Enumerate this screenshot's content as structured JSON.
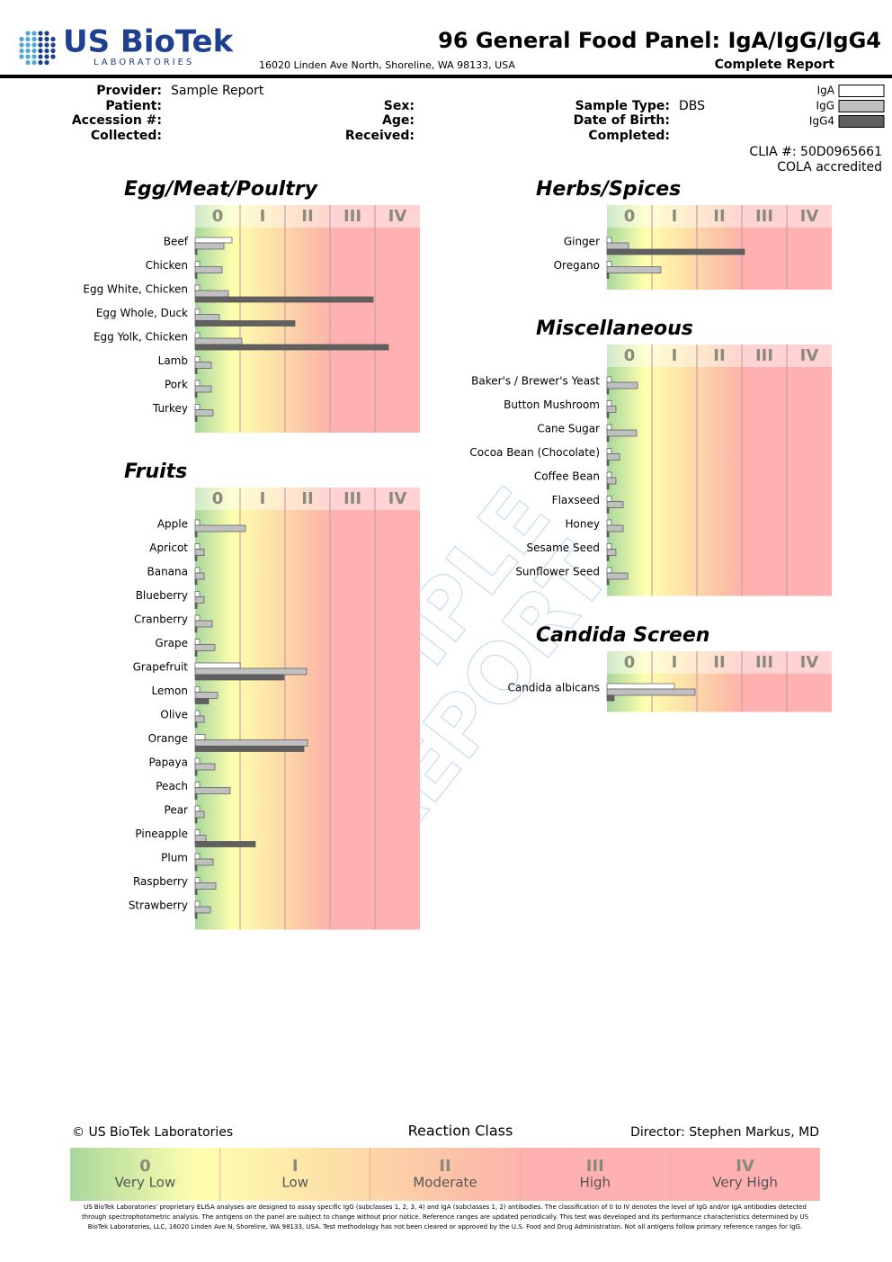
{
  "header": {
    "logo": "US BioTek",
    "logo_sub": "LABORATORIES",
    "address": "16020 Linden Ave North, Shoreline, WA 98133, USA",
    "title": "96 General Food Panel: IgA/IgG/IgG4",
    "subtitle": "Complete Report"
  },
  "fields": [
    [
      {
        "label": "Provider:",
        "value": "Sample Report"
      },
      {
        "label": "Patient:"
      },
      {
        "label": "Accession #:"
      },
      {
        "label": "Collected:"
      }
    ],
    [
      {
        "label": "Sex:"
      },
      {
        "label": "Age:"
      },
      {
        "label": "Received:"
      }
    ],
    [
      {
        "label": "Sample Type:",
        "value": "DBS"
      },
      {
        "label": "Date of Birth:"
      },
      {
        "label": "Completed:"
      }
    ]
  ],
  "legend": [
    {
      "name": "IgA",
      "color": "#ffffff"
    },
    {
      "name": "IgG",
      "color": "#c0c0c0"
    },
    {
      "name": "IgG4",
      "color": "#606060"
    }
  ],
  "clia": [
    "CLIA #: 50D0965661",
    "COLA accredited"
  ],
  "watermark": [
    "SAMPLE",
    "REPORT"
  ],
  "chart_data": [
    {
      "type": "bar",
      "title": "Egg/Meat/Poultry",
      "orientation": "horizontal",
      "categories": [
        "Beef",
        "Chicken",
        "Egg White, Chicken",
        "Egg Whole, Duck",
        "Egg Yolk, Chicken",
        "Lamb",
        "Pork",
        "Turkey"
      ],
      "series": [
        {
          "values": [
            0.82,
            0.1,
            0.1,
            0.1,
            0.1,
            0.1,
            0.1,
            0.1
          ]
        },
        {
          "values": [
            0.64,
            0.6,
            0.74,
            0.54,
            1.04,
            0.36,
            0.36,
            0.4
          ]
        },
        {
          "values": [
            0.04,
            0.04,
            3.96,
            2.22,
            4.3,
            0.04,
            0.04,
            0.04
          ]
        }
      ],
      "xlim": [
        0,
        5
      ],
      "xticks": [
        {
          "value": 0.5,
          "label": "0"
        },
        {
          "value": 1.5,
          "label": "I"
        },
        {
          "value": 2.5,
          "label": "II"
        },
        {
          "value": 3.5,
          "label": "III"
        },
        {
          "value": 4.5,
          "label": "IV"
        }
      ]
    },
    {
      "type": "bar",
      "title": "Fruits",
      "orientation": "horizontal",
      "categories": [
        "Apple",
        "Apricot",
        "Banana",
        "Blueberry",
        "Cranberry",
        "Grape",
        "Grapefruit",
        "Lemon",
        "Olive",
        "Orange",
        "Papaya",
        "Peach",
        "Pear",
        "Pineapple",
        "Plum",
        "Raspberry",
        "Strawberry"
      ],
      "series": [
        {
          "values": [
            0.1,
            0.1,
            0.1,
            0.1,
            0.1,
            0.1,
            1.0,
            0.1,
            0.1,
            0.22,
            0.1,
            0.1,
            0.1,
            0.1,
            0.1,
            0.1,
            0.1
          ]
        },
        {
          "values": [
            1.12,
            0.2,
            0.2,
            0.2,
            0.38,
            0.44,
            2.48,
            0.5,
            0.2,
            2.5,
            0.44,
            0.78,
            0.2,
            0.24,
            0.4,
            0.46,
            0.34
          ]
        },
        {
          "values": [
            0.04,
            0.04,
            0.04,
            0.04,
            0.04,
            0.04,
            1.98,
            0.3,
            0.04,
            2.42,
            0.04,
            0.04,
            0.04,
            1.34,
            0.04,
            0.04,
            0.04
          ]
        }
      ],
      "xlim": [
        0,
        5
      ],
      "xticks": [
        {
          "value": 0.5,
          "label": "0"
        },
        {
          "value": 1.5,
          "label": "I"
        },
        {
          "value": 2.5,
          "label": "II"
        },
        {
          "value": 3.5,
          "label": "III"
        },
        {
          "value": 4.5,
          "label": "IV"
        }
      ]
    },
    {
      "type": "bar",
      "title": "Herbs/Spices",
      "orientation": "horizontal",
      "categories": [
        "Ginger",
        "Oregano"
      ],
      "series": [
        {
          "values": [
            0.1,
            0.1
          ]
        },
        {
          "values": [
            0.48,
            1.2
          ]
        },
        {
          "values": [
            3.06,
            0.04
          ]
        }
      ],
      "xlim": [
        0,
        5
      ],
      "xticks": [
        {
          "value": 0.5,
          "label": "0"
        },
        {
          "value": 1.5,
          "label": "I"
        },
        {
          "value": 2.5,
          "label": "II"
        },
        {
          "value": 3.5,
          "label": "III"
        },
        {
          "value": 4.5,
          "label": "IV"
        }
      ]
    },
    {
      "type": "bar",
      "title": "Miscellaneous",
      "orientation": "horizontal",
      "categories": [
        "Baker's / Brewer's Yeast",
        "Button Mushroom",
        "Cane Sugar",
        "Cocoa Bean (Chocolate)",
        "Coffee Bean",
        "Flaxseed",
        "Honey",
        "Sesame Seed",
        "Sunflower Seed"
      ],
      "series": [
        {
          "values": [
            0.1,
            0.1,
            0.1,
            0.1,
            0.1,
            0.1,
            0.1,
            0.1,
            0.1
          ]
        },
        {
          "values": [
            0.68,
            0.2,
            0.66,
            0.28,
            0.2,
            0.36,
            0.36,
            0.2,
            0.46
          ]
        },
        {
          "values": [
            0.04,
            0.04,
            0.04,
            0.04,
            0.04,
            0.04,
            0.04,
            0.04,
            0.04
          ]
        }
      ],
      "xlim": [
        0,
        5
      ],
      "xticks": [
        {
          "value": 0.5,
          "label": "0"
        },
        {
          "value": 1.5,
          "label": "I"
        },
        {
          "value": 2.5,
          "label": "II"
        },
        {
          "value": 3.5,
          "label": "III"
        },
        {
          "value": 4.5,
          "label": "IV"
        }
      ]
    },
    {
      "type": "bar",
      "title": "Candida Screen",
      "orientation": "horizontal",
      "categories": [
        "Candida albicans"
      ],
      "series": [
        {
          "values": [
            1.5
          ]
        },
        {
          "values": [
            1.96
          ]
        },
        {
          "values": [
            0.16
          ]
        }
      ],
      "xlim": [
        0,
        5
      ],
      "xticks": [
        {
          "value": 0.5,
          "label": "0"
        },
        {
          "value": 1.5,
          "label": "I"
        },
        {
          "value": 2.5,
          "label": "II"
        },
        {
          "value": 3.5,
          "label": "III"
        },
        {
          "value": 4.5,
          "label": "IV"
        }
      ]
    }
  ],
  "footer": {
    "copyright": "© US BioTek Laboratories",
    "scale_title": "Reaction Class",
    "director": "Director: Stephen Markus, MD",
    "classes": [
      {
        "numeral": "0",
        "name": "Very Low"
      },
      {
        "numeral": "I",
        "name": "Low"
      },
      {
        "numeral": "II",
        "name": "Moderate"
      },
      {
        "numeral": "III",
        "name": "High"
      },
      {
        "numeral": "IV",
        "name": "Very High"
      }
    ],
    "disclaimer": "US BioTek Laboratories' proprietary ELISA analyses are designed to assay specific IgG (subclasses 1, 2, 3, 4) and IgA (subclasses 1, 2) antibodies. The classification of 0 to IV denotes the level of IgG and/or IgA antibodies detected through spectrophotometric analysis. The antigens on the panel are subject to change without prior notice. Reference ranges are updated periodically. This test was developed and its performance characteristics determined by US BioTek Laboratories, LLC, 16020 Linden Ave N, Shoreline, WA 98133, USA. Test methodology has not been cleared or approved by the U.S. Food and Drug Administration. Not all antigens follow primary reference ranges for IgG."
  }
}
